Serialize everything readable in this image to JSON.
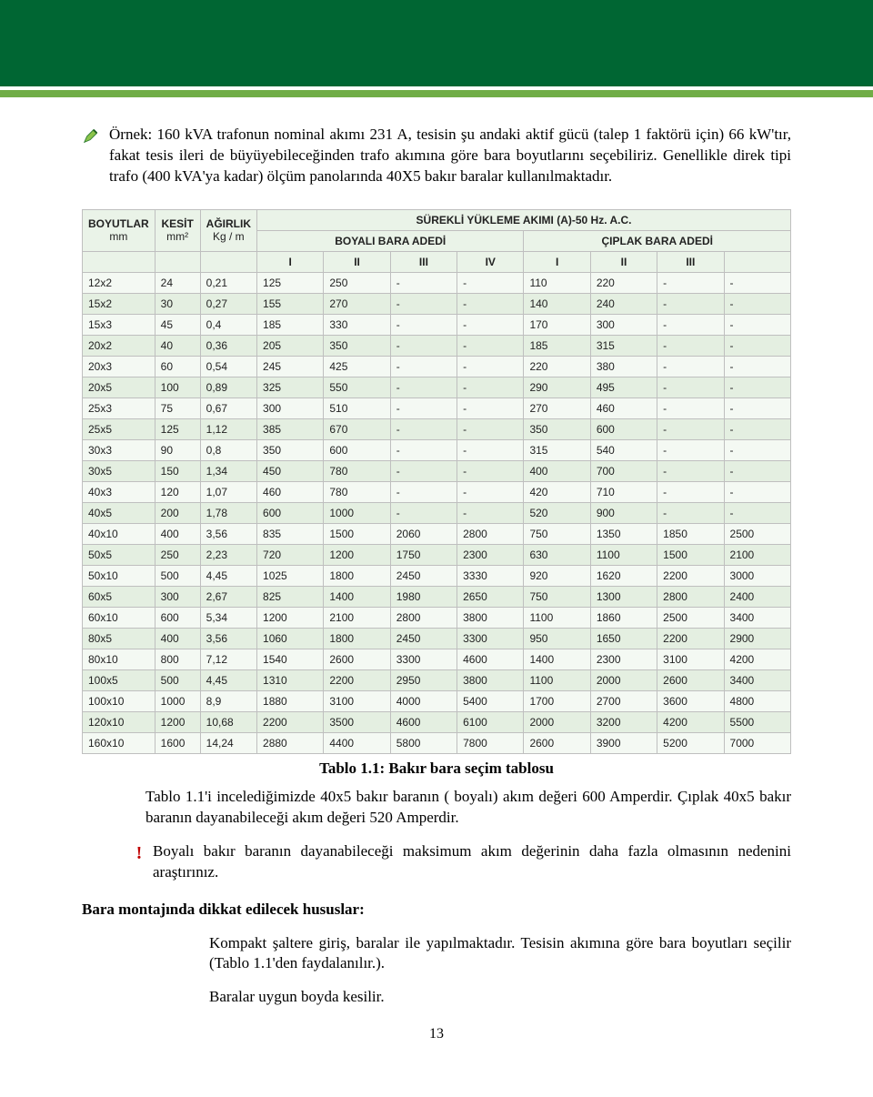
{
  "example_icon_fill": "#2e7d32",
  "paragraphs": {
    "p1": "Örnek: 160 kVA trafonun nominal akımı 231 A, tesisin şu andaki aktif gücü (talep 1 faktörü için) 66 kW'tır, fakat tesis ileri de büyüyebileceğinden trafo akımına göre bara boyutlarını seçebiliriz. Genellikle direk tipi trafo (400 kVA'ya kadar) ölçüm panolarında 40X5 bakır baralar kullanılmaktadır.",
    "caption": "Tablo 1.1: Bakır bara seçim tablosu",
    "p2": "Tablo 1.1'i incelediğimizde 40x5 bakır baranın ( boyalı) akım değeri 600 Amperdir. Çıplak 40x5 bakır baranın dayanabileceği akım değeri 520 Amperdir.",
    "p3": "Boyalı bakır baranın dayanabileceği maksimum akım değerinin daha fazla olmasının nedenini araştırınız.",
    "p4_title": "Bara montajında dikkat edilecek hususlar:",
    "p5": "Kompakt şaltere giriş, baralar ile yapılmaktadır. Tesisin akımına göre bara boyutları seçilir (Tablo 1.1'den faydalanılır.).",
    "p6": "Baralar uygun boyda kesilir."
  },
  "table": {
    "top_title": "SÜREKLİ YÜKLEME AKIMI (A)-50 Hz. A.C.",
    "group_boyali": "BOYALI BARA ADEDİ",
    "group_ciplak": "ÇIPLAK BARA ADEDİ",
    "h_boyutlar": "BOYUTLAR",
    "h_boyutlar_u": "mm",
    "h_kesit": "KESİT",
    "h_kesit_u": "mm²",
    "h_agirlik": "AĞIRLIK",
    "h_agirlik_u": "Kg / m",
    "h_I": "I",
    "h_II": "II",
    "h_III": "III",
    "h_IV": "IV",
    "rows": [
      [
        "12x2",
        "24",
        "0,21",
        "125",
        "250",
        "-",
        "-",
        "110",
        "220",
        "-",
        "-"
      ],
      [
        "15x2",
        "30",
        "0,27",
        "155",
        "270",
        "-",
        "-",
        "140",
        "240",
        "-",
        "-"
      ],
      [
        "15x3",
        "45",
        "0,4",
        "185",
        "330",
        "-",
        "-",
        "170",
        "300",
        "-",
        "-"
      ],
      [
        "20x2",
        "40",
        "0,36",
        "205",
        "350",
        "-",
        "-",
        "185",
        "315",
        "-",
        "-"
      ],
      [
        "20x3",
        "60",
        "0,54",
        "245",
        "425",
        "-",
        "-",
        "220",
        "380",
        "-",
        "-"
      ],
      [
        "20x5",
        "100",
        "0,89",
        "325",
        "550",
        "-",
        "-",
        "290",
        "495",
        "-",
        "-"
      ],
      [
        "25x3",
        "75",
        "0,67",
        "300",
        "510",
        "-",
        "-",
        "270",
        "460",
        "-",
        "-"
      ],
      [
        "25x5",
        "125",
        "1,12",
        "385",
        "670",
        "-",
        "-",
        "350",
        "600",
        "-",
        "-"
      ],
      [
        "30x3",
        "90",
        "0,8",
        "350",
        "600",
        "-",
        "-",
        "315",
        "540",
        "-",
        "-"
      ],
      [
        "30x5",
        "150",
        "1,34",
        "450",
        "780",
        "-",
        "-",
        "400",
        "700",
        "-",
        "-"
      ],
      [
        "40x3",
        "120",
        "1,07",
        "460",
        "780",
        "-",
        "-",
        "420",
        "710",
        "-",
        "-"
      ],
      [
        "40x5",
        "200",
        "1,78",
        "600",
        "1000",
        "-",
        "-",
        "520",
        "900",
        "-",
        "-"
      ],
      [
        "40x10",
        "400",
        "3,56",
        "835",
        "1500",
        "2060",
        "2800",
        "750",
        "1350",
        "1850",
        "2500"
      ],
      [
        "50x5",
        "250",
        "2,23",
        "720",
        "1200",
        "1750",
        "2300",
        "630",
        "1100",
        "1500",
        "2100"
      ],
      [
        "50x10",
        "500",
        "4,45",
        "1025",
        "1800",
        "2450",
        "3330",
        "920",
        "1620",
        "2200",
        "3000"
      ],
      [
        "60x5",
        "300",
        "2,67",
        "825",
        "1400",
        "1980",
        "2650",
        "750",
        "1300",
        "2800",
        "2400"
      ],
      [
        "60x10",
        "600",
        "5,34",
        "1200",
        "2100",
        "2800",
        "3800",
        "1100",
        "1860",
        "2500",
        "3400"
      ],
      [
        "80x5",
        "400",
        "3,56",
        "1060",
        "1800",
        "2450",
        "3300",
        "950",
        "1650",
        "2200",
        "2900"
      ],
      [
        "80x10",
        "800",
        "7,12",
        "1540",
        "2600",
        "3300",
        "4600",
        "1400",
        "2300",
        "3100",
        "4200"
      ],
      [
        "100x5",
        "500",
        "4,45",
        "1310",
        "2200",
        "2950",
        "3800",
        "1100",
        "2000",
        "2600",
        "3400"
      ],
      [
        "100x10",
        "1000",
        "8,9",
        "1880",
        "3100",
        "4000",
        "5400",
        "1700",
        "2700",
        "3600",
        "4800"
      ],
      [
        "120x10",
        "1200",
        "10,68",
        "2200",
        "3500",
        "4600",
        "6100",
        "2000",
        "3200",
        "4200",
        "5500"
      ],
      [
        "160x10",
        "1600",
        "14,24",
        "2880",
        "4400",
        "5800",
        "7800",
        "2600",
        "3900",
        "5200",
        "7000"
      ]
    ]
  },
  "page_number": "13"
}
